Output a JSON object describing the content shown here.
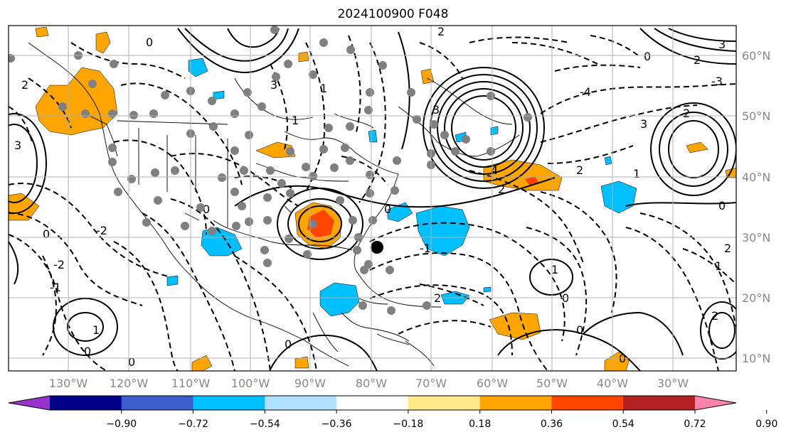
{
  "title": "2024100900 F048",
  "lon_labels": [
    "130°W",
    "120°W",
    "110°W",
    "100°W",
    "90°W",
    "80°W",
    "70°W",
    "60°W",
    "50°W",
    "40°W",
    "30°W"
  ],
  "lat_labels": [
    "60°N",
    "50°N",
    "40°N",
    "30°N",
    "20°N",
    "10°N"
  ],
  "colorbar": {
    "ticks": [
      "−0.90",
      "−0.72",
      "−0.54",
      "−0.36",
      "−0.18",
      "0.18",
      "0.36",
      "0.54",
      "0.72",
      "0.90"
    ],
    "colors": [
      "#9932cc",
      "#00008b",
      "#3a5fcd",
      "#00bfff",
      "#b0e2ff",
      "#ffffff",
      "#ffe989",
      "#ffa500",
      "#ff4500",
      "#b22222",
      "#ff82ab"
    ]
  },
  "contour_labels": [
    "-2",
    "-1",
    "0",
    "1",
    "2",
    "3",
    "4",
    "-3",
    "-4"
  ],
  "colors": {
    "positive": "#ffa500",
    "positive_strong": "#ff4500",
    "negative": "#00bfff",
    "station": "#808080",
    "marker": "#000000"
  },
  "storm_marker": "storm-center"
}
